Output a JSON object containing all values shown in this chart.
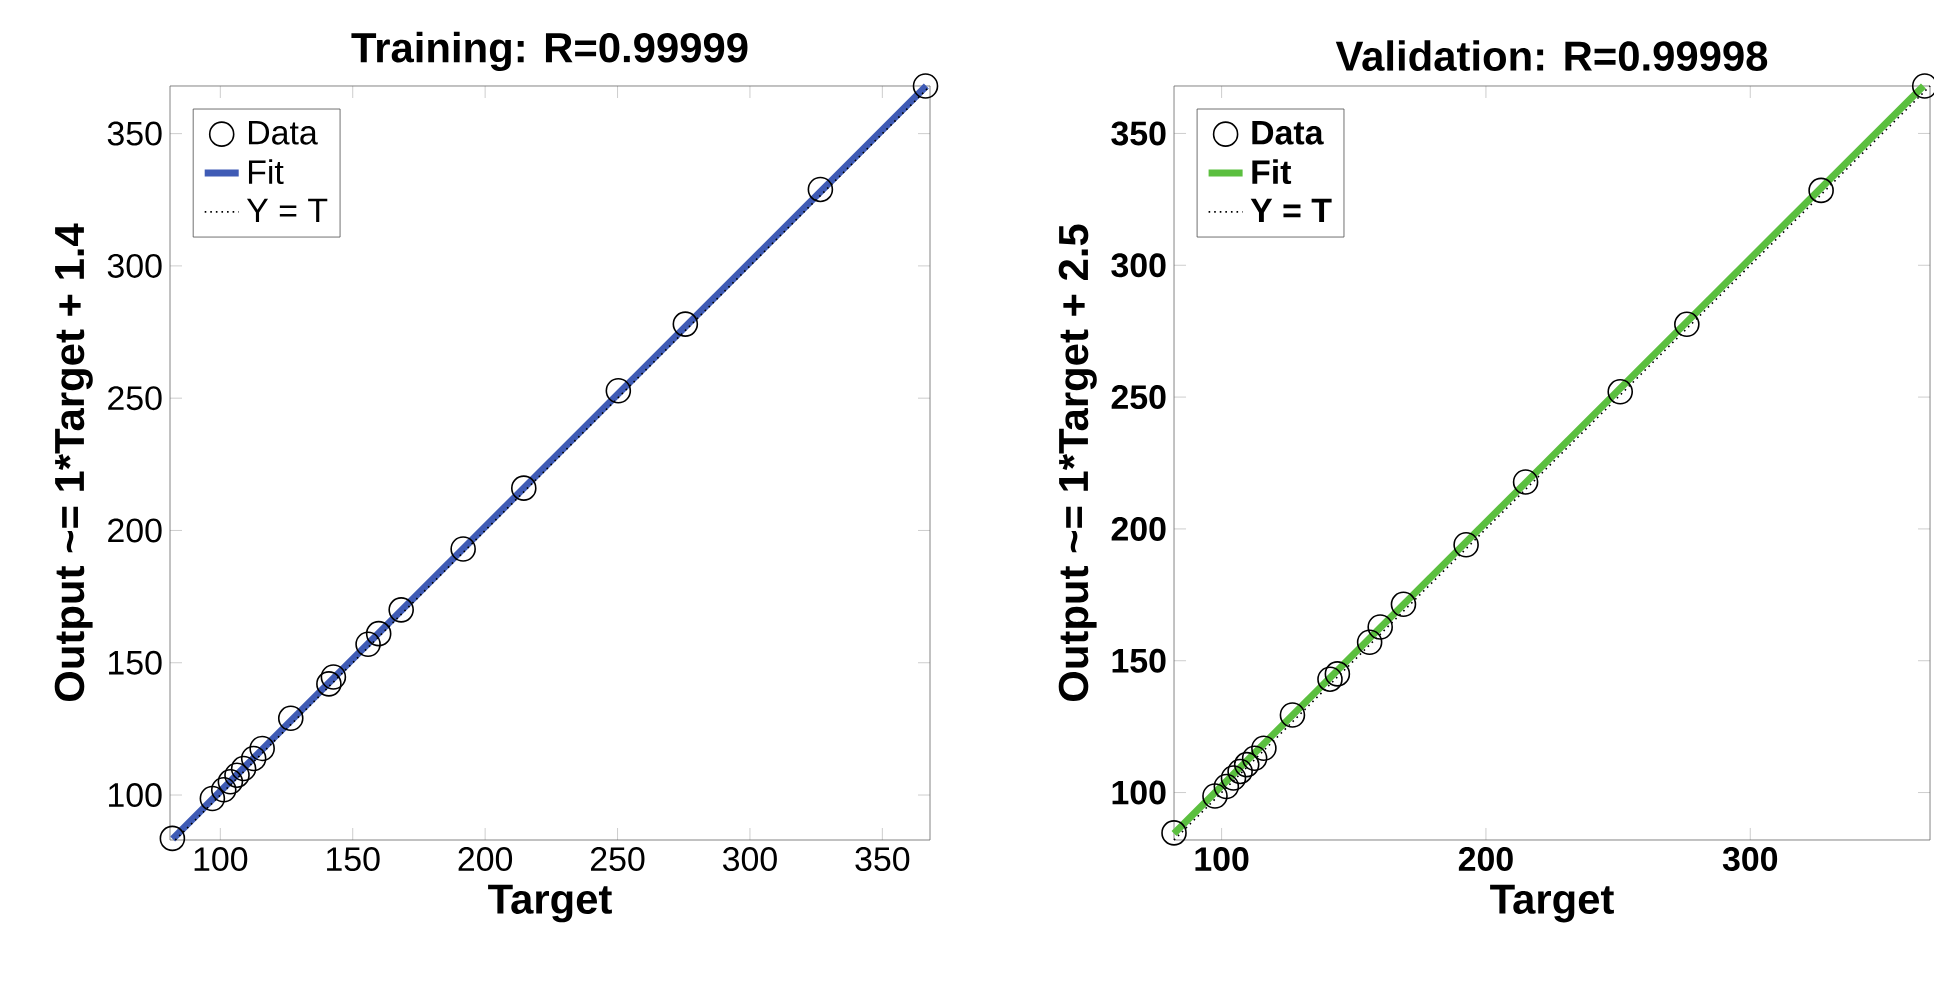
{
  "chart_data": [
    {
      "type": "scatter",
      "title": "Training: R=0.99999",
      "xlabel": "Target",
      "ylabel": "Output ~= 1*Target + 1.4",
      "xlim": [
        81,
        368
      ],
      "ylim": [
        83,
        368
      ],
      "xticks": [
        100,
        150,
        200,
        250,
        300,
        350
      ],
      "yticks": [
        100,
        150,
        200,
        250,
        300,
        350
      ],
      "legend": "top left",
      "grid": false,
      "series": [
        {
          "name": "Data",
          "marker": "circle",
          "color": "#000000",
          "x": [
            81.9,
            97,
            101.3,
            103.8,
            106.3,
            108.8,
            112.6,
            115.8,
            126.6,
            141,
            142.7,
            155.8,
            159.8,
            168.3,
            191.7,
            214.6,
            250.3,
            275.6,
            326.6,
            366.3
          ],
          "values": [
            83.6,
            98.7,
            102,
            105,
            107.5,
            110,
            113.8,
            117.6,
            129,
            142,
            144.6,
            157,
            161,
            170,
            193,
            216,
            252.8,
            278,
            328.9,
            368
          ]
        },
        {
          "name": "Fit",
          "type": "line",
          "line_style": "solid",
          "color": "#3f5bb5",
          "x": [
            82,
            366.6
          ],
          "values": [
            83.4,
            368
          ]
        },
        {
          "name": "Y = T",
          "type": "line",
          "line_style": "dotted",
          "color": "#000000",
          "x": [
            83,
            368
          ],
          "values": [
            83,
            368
          ]
        }
      ]
    },
    {
      "type": "scatter",
      "title": "Validation: R=0.99998",
      "xlabel": "Target",
      "ylabel": "Output ~= 1*Target + 2.5",
      "xlim": [
        82,
        368
      ],
      "ylim": [
        82,
        368
      ],
      "xticks": [
        100,
        200,
        300
      ],
      "yticks": [
        100,
        150,
        200,
        250,
        300,
        350
      ],
      "legend": "top left",
      "grid": false,
      "series": [
        {
          "name": "Data",
          "marker": "circle",
          "color": "#000000",
          "x": [
            82,
            97.5,
            101.8,
            104.5,
            107,
            109.5,
            112.5,
            116,
            126.8,
            141,
            143.8,
            156,
            160,
            168.8,
            192.5,
            215,
            250.8,
            276,
            326.8,
            366
          ],
          "values": [
            84.7,
            98.7,
            102.3,
            105.5,
            108,
            110.6,
            113,
            116.8,
            129.4,
            143,
            145,
            157,
            162.8,
            171.4,
            194,
            217.8,
            252,
            277.6,
            328.4,
            368
          ]
        },
        {
          "name": "Fit",
          "type": "line",
          "line_style": "solid",
          "color": "#5bbf3f",
          "x": [
            82,
            365.5
          ],
          "values": [
            84.5,
            368
          ]
        },
        {
          "name": "Y = T",
          "type": "line",
          "line_style": "dotted",
          "color": "#000000",
          "x": [
            82,
            368
          ],
          "values": [
            82,
            368
          ]
        }
      ]
    }
  ]
}
